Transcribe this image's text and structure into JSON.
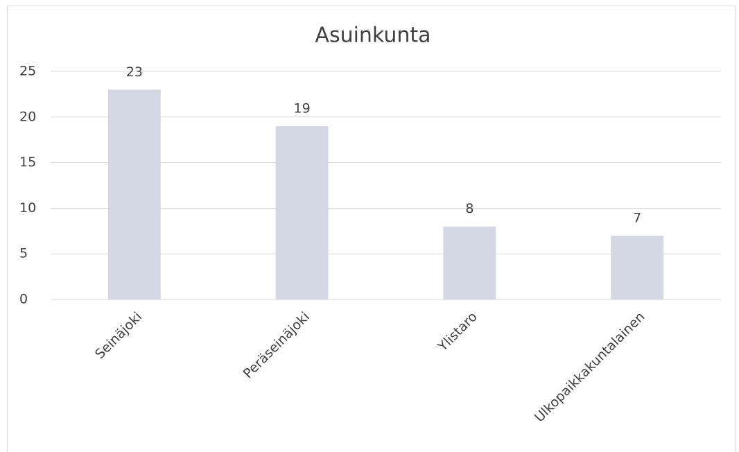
{
  "chart_data": {
    "type": "bar",
    "title": "Asuinkunta",
    "categories": [
      "Seinäjoki",
      "Peräseinäjoki",
      "Ylistaro",
      "Ulkopaikkakuntalainen"
    ],
    "values": [
      23,
      19,
      8,
      7
    ],
    "color": "#d3d8e4",
    "ylim": [
      0,
      25
    ],
    "yticks": [
      0,
      5,
      10,
      15,
      20,
      25
    ],
    "grid": true,
    "data_labels": true
  }
}
